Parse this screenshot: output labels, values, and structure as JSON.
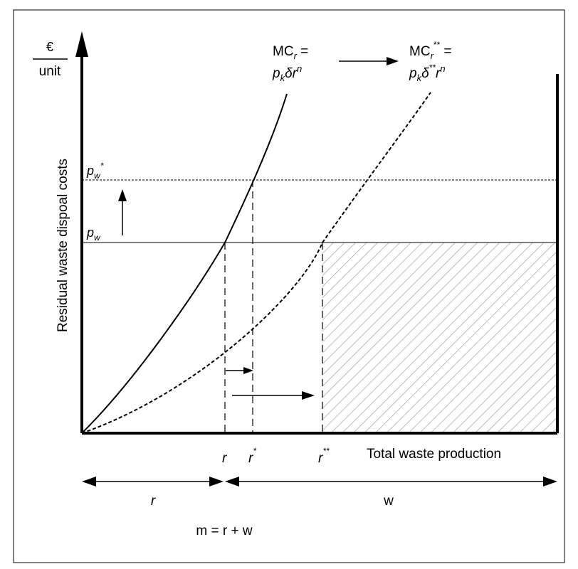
{
  "figure": {
    "y_unit_numerator": "€",
    "y_unit_denominator": "unit",
    "y_axis_label": "Residual waste dispoal costs",
    "x_axis_label": "Total waste production",
    "curve1": {
      "line1_prefix": "MC",
      "line1_sub": "r",
      "line1_suffix": " =",
      "line2_p": "p",
      "line2_k": "k",
      "line2_delta": "δr",
      "line2_n": "n"
    },
    "curve2": {
      "line1_prefix": "MC",
      "line1_sub": "r",
      "line1_sup": "**",
      "line1_suffix": " =",
      "line2_p": "p",
      "line2_k": "k",
      "line2_delta": "δ",
      "line2_sup": "**",
      "line2_r": "r",
      "line2_n": "n"
    },
    "price_low": {
      "p": "p",
      "sub": "w"
    },
    "price_high": {
      "p": "p",
      "sub": "w",
      "sup": "*"
    },
    "x_ticks": {
      "r": "r",
      "r_star": "r",
      "r_star_sup": "*",
      "r_dstar": "r",
      "r_dstar_sup": "**"
    },
    "span_r_label": "r",
    "span_w_label": "w",
    "equation": "m = r + w",
    "colors": {
      "ink": "#000000",
      "hatch": "#9a9a9a",
      "frame": "#000000"
    }
  }
}
